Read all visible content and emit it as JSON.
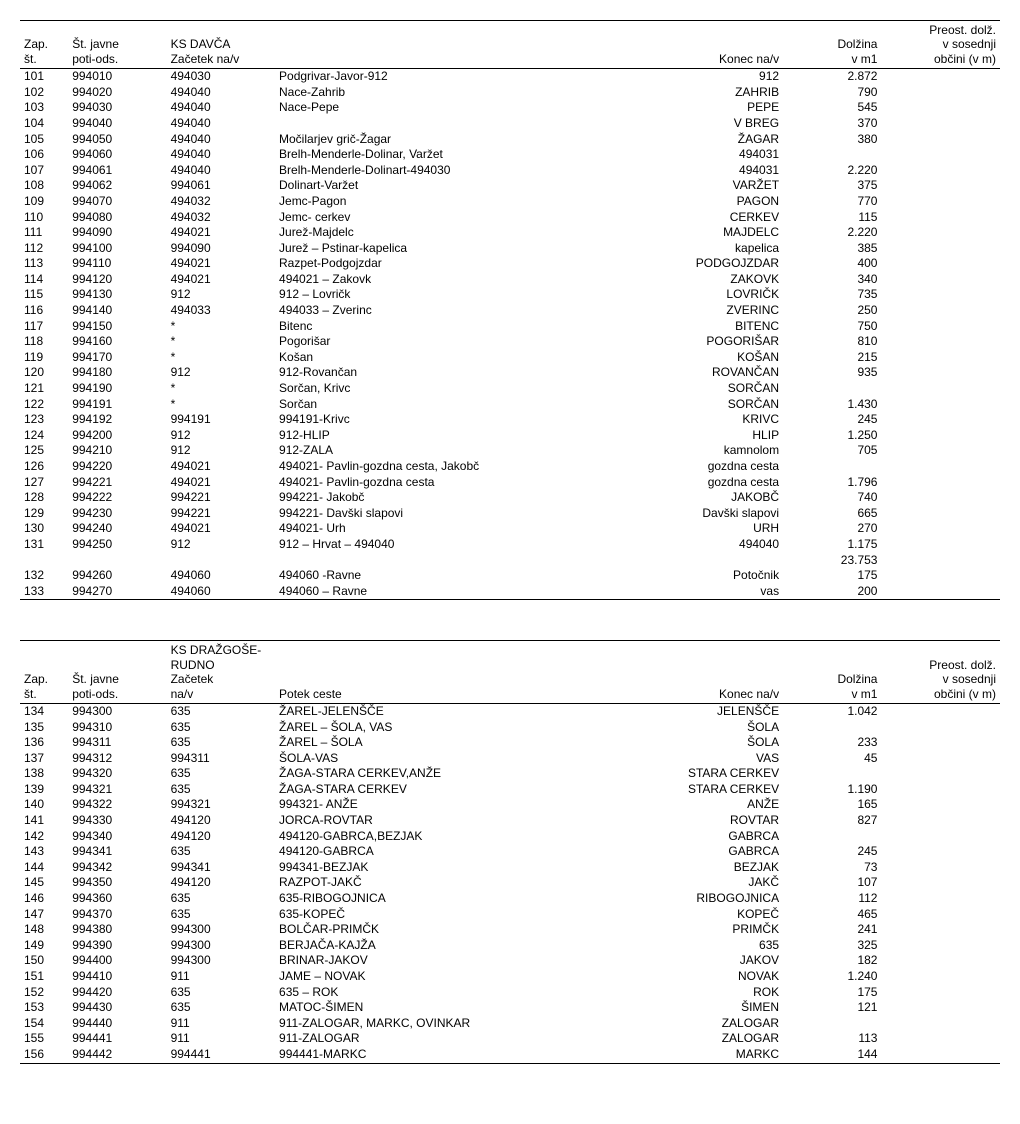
{
  "tables": [
    {
      "section_title": "KS DAVČA",
      "headers": {
        "zap": "Zap.\nšt.",
        "jav": "Št. javne\npoti-ods.",
        "zac": "Začetek na/v",
        "pot": "",
        "kon": "Konec na/v",
        "dol": "Dolžina\nv m1",
        "pre": "Preost. dolž.\nv sosednji\nobčini (v m)"
      },
      "rows": [
        [
          "101",
          "994010",
          "494030",
          "Podgrivar-Javor-912",
          "912",
          "2.872",
          ""
        ],
        [
          "102",
          "994020",
          "494040",
          "Nace-Zahrib",
          "ZAHRIB",
          "790",
          ""
        ],
        [
          "103",
          "994030",
          "494040",
          "Nace-Pepe",
          "PEPE",
          "545",
          ""
        ],
        [
          "104",
          "994040",
          "494040",
          "",
          "V BREG",
          "370",
          ""
        ],
        [
          "105",
          "994050",
          "494040",
          "Močilarjev grič-Žagar",
          "ŽAGAR",
          "380",
          ""
        ],
        [
          "106",
          "994060",
          "494040",
          "Brelh-Menderle-Dolinar, Varžet",
          "494031",
          "",
          ""
        ],
        [
          "107",
          "994061",
          "494040",
          "Brelh-Menderle-Dolinart-494030",
          "494031",
          "2.220",
          ""
        ],
        [
          "108",
          "994062",
          "994061",
          "Dolinart-Varžet",
          "VARŽET",
          "375",
          ""
        ],
        [
          "109",
          "994070",
          "494032",
          "Jemc-Pagon",
          "PAGON",
          "770",
          ""
        ],
        [
          "110",
          "994080",
          "494032",
          "Jemc- cerkev",
          "CERKEV",
          "115",
          ""
        ],
        [
          "111",
          "994090",
          "494021",
          "Jurež-Majdelc",
          "MAJDELC",
          "2.220",
          ""
        ],
        [
          "112",
          "994100",
          "994090",
          "Jurež – Pstinar-kapelica",
          "kapelica",
          "385",
          ""
        ],
        [
          "113",
          "994110",
          "494021",
          "Razpet-Podgojzdar",
          "PODGOJZDAR",
          "400",
          ""
        ],
        [
          "114",
          "994120",
          "494021",
          "494021 – Zakovk",
          "ZAKOVK",
          "340",
          ""
        ],
        [
          "115",
          "994130",
          "912",
          "912 – Lovričk",
          "LOVRIČK",
          "735",
          ""
        ],
        [
          "116",
          "994140",
          "494033",
          "494033 – Zverinc",
          "ZVERINC",
          "250",
          ""
        ],
        [
          "117",
          "994150",
          "*",
          "Bitenc",
          "BITENC",
          "750",
          ""
        ],
        [
          "118",
          "994160",
          "*",
          "Pogorišar",
          "POGORIŠAR",
          "810",
          ""
        ],
        [
          "119",
          "994170",
          "*",
          "Košan",
          "KOŠAN",
          "215",
          ""
        ],
        [
          "120",
          "994180",
          "912",
          "912-Rovančan",
          "ROVANČAN",
          "935",
          ""
        ],
        [
          "121",
          "994190",
          "*",
          "Sorčan, Krivc",
          "SORČAN",
          "",
          ""
        ],
        [
          "122",
          "994191",
          "*",
          "Sorčan",
          "SORČAN",
          "1.430",
          ""
        ],
        [
          "123",
          "994192",
          "994191",
          "994191-Krivc",
          "KRIVC",
          "245",
          ""
        ],
        [
          "124",
          "994200",
          "912",
          "912-HLIP",
          "HLIP",
          "1.250",
          ""
        ],
        [
          "125",
          "994210",
          "912",
          "912-ZALA",
          "kamnolom",
          "705",
          ""
        ],
        [
          "126",
          "994220",
          "494021",
          "494021- Pavlin-gozdna cesta, Jakobč",
          "gozdna cesta",
          "",
          ""
        ],
        [
          "127",
          "994221",
          "494021",
          "494021- Pavlin-gozdna cesta",
          "gozdna cesta",
          "1.796",
          ""
        ],
        [
          "128",
          "994222",
          "994221",
          "994221- Jakobč",
          "JAKOBČ",
          "740",
          ""
        ],
        [
          "129",
          "994230",
          "994221",
          "994221- Davški slapovi",
          "Davški slapovi",
          "665",
          ""
        ],
        [
          "130",
          "994240",
          "494021",
          "494021- Urh",
          "URH",
          "270",
          ""
        ],
        [
          "131",
          "994250",
          "912",
          "912 – Hrvat – 494040",
          "494040",
          "1.175",
          ""
        ],
        [
          "",
          "",
          "",
          "",
          "",
          "23.753",
          ""
        ],
        [
          "132",
          "994260",
          "494060",
          "494060 -Ravne",
          "Potočnik",
          "175",
          ""
        ],
        [
          "133",
          "994270",
          "494060",
          "494060 – Ravne",
          "vas",
          "200",
          ""
        ]
      ]
    },
    {
      "section_title": "KS DRAŽGOŠE-RUDNO",
      "headers": {
        "zap": "Zap.\nšt.",
        "jav": "Št. javne\npoti-ods.",
        "zac": "Začetek\nna/v",
        "pot": "Potek ceste",
        "kon": "Konec na/v",
        "dol": "Dolžina\nv m1",
        "pre": "Preost. dolž.\nv sosednji\nobčini (v m)"
      },
      "rows": [
        [
          "134",
          "994300",
          "635",
          "ŽAREL-JELENŠČE",
          "JELENŠČE",
          "1.042",
          ""
        ],
        [
          "135",
          "994310",
          "635",
          "ŽAREL – ŠOLA, VAS",
          "ŠOLA",
          "",
          ""
        ],
        [
          "136",
          "994311",
          "635",
          "ŽAREL – ŠOLA",
          "ŠOLA",
          "233",
          ""
        ],
        [
          "137",
          "994312",
          "994311",
          "ŠOLA-VAS",
          "VAS",
          "45",
          ""
        ],
        [
          "138",
          "994320",
          "635",
          "ŽAGA-STARA CERKEV,ANŽE",
          "STARA CERKEV",
          "",
          ""
        ],
        [
          "139",
          "994321",
          "635",
          "ŽAGA-STARA CERKEV",
          "STARA CERKEV",
          "1.190",
          ""
        ],
        [
          "140",
          "994322",
          "994321",
          "994321- ANŽE",
          "ANŽE",
          "165",
          ""
        ],
        [
          "141",
          "994330",
          "494120",
          "JORCA-ROVTAR",
          "ROVTAR",
          "827",
          ""
        ],
        [
          "142",
          "994340",
          "494120",
          "494120-GABRCA,BEZJAK",
          "GABRCA",
          "",
          ""
        ],
        [
          "143",
          "994341",
          "635",
          "494120-GABRCA",
          "GABRCA",
          "245",
          ""
        ],
        [
          "144",
          "994342",
          "994341",
          "994341-BEZJAK",
          "BEZJAK",
          "73",
          ""
        ],
        [
          "145",
          "994350",
          "494120",
          "RAZPOT-JAKČ",
          "JAKČ",
          "107",
          ""
        ],
        [
          "146",
          "994360",
          "635",
          "635-RIBOGOJNICA",
          "RIBOGOJNICA",
          "112",
          ""
        ],
        [
          "147",
          "994370",
          "635",
          "635-KOPEČ",
          "KOPEČ",
          "465",
          ""
        ],
        [
          "148",
          "994380",
          "994300",
          "BOLČAR-PRIMČK",
          "PRIMČK",
          "241",
          ""
        ],
        [
          "149",
          "994390",
          "994300",
          "BERJAČA-KAJŽA",
          "635",
          "325",
          ""
        ],
        [
          "150",
          "994400",
          "994300",
          "BRINAR-JAKOV",
          "JAKOV",
          "182",
          ""
        ],
        [
          "151",
          "994410",
          "911",
          "JAME – NOVAK",
          "NOVAK",
          "1.240",
          ""
        ],
        [
          "152",
          "994420",
          "635",
          "635 – ROK",
          "ROK",
          "175",
          ""
        ],
        [
          "153",
          "994430",
          "635",
          "MATOC-ŠIMEN",
          "ŠIMEN",
          "121",
          ""
        ],
        [
          "154",
          "994440",
          "911",
          "911-ZALOGAR, MARKC, OVINKAR",
          "ZALOGAR",
          "",
          ""
        ],
        [
          "155",
          "994441",
          "911",
          "911-ZALOGAR",
          "ZALOGAR",
          "113",
          ""
        ],
        [
          "156",
          "994442",
          "994441",
          "994441-MARKC",
          "MARKC",
          "144",
          ""
        ]
      ]
    }
  ]
}
